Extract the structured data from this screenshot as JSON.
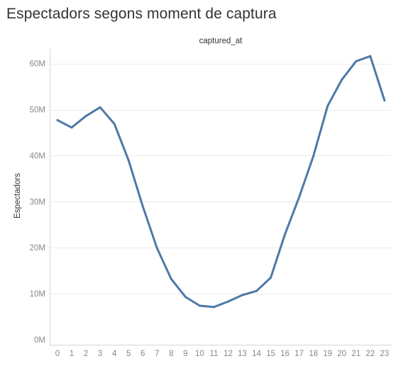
{
  "title": "Espectadors segons moment de captura",
  "chart_data": {
    "type": "line",
    "title": "Espectadors segons moment de captura",
    "xlabel": "captured_at",
    "ylabel": "Espectadors",
    "x": [
      0,
      1,
      2,
      3,
      4,
      5,
      6,
      7,
      8,
      9,
      10,
      11,
      12,
      13,
      14,
      15,
      16,
      17,
      18,
      19,
      20,
      21,
      22,
      23
    ],
    "x_tick_labels": [
      "0",
      "1",
      "2",
      "3",
      "4",
      "5",
      "6",
      "7",
      "8",
      "9",
      "10",
      "11",
      "12",
      "13",
      "14",
      "15",
      "16",
      "17",
      "18",
      "19",
      "20",
      "21",
      "22",
      "23"
    ],
    "series": [
      {
        "values": [
          47.7,
          46.1,
          48.6,
          50.5,
          46.9,
          39.0,
          29.0,
          19.9,
          13.2,
          9.3,
          7.4,
          7.1,
          8.3,
          9.7,
          10.6,
          13.5,
          22.9,
          31.0,
          39.9,
          50.8,
          56.5,
          60.5,
          61.6,
          52.0
        ],
        "color": "#4e79a7"
      }
    ],
    "ylim": [
      0,
      65
    ],
    "y_ticks": [
      0,
      10,
      20,
      30,
      40,
      50,
      60
    ],
    "y_tick_labels": [
      "0M",
      "10M",
      "20M",
      "30M",
      "40M",
      "50M",
      "60M"
    ],
    "units": "millions",
    "grid": true
  }
}
